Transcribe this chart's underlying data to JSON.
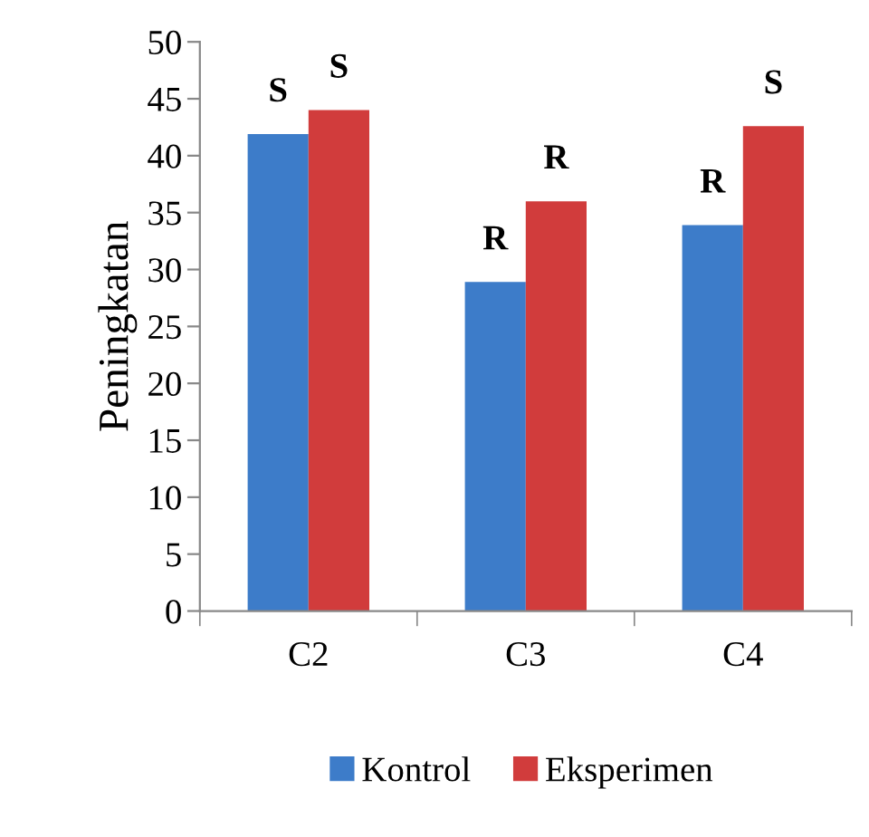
{
  "chart_data": {
    "type": "bar",
    "ylabel": "Peningkatan",
    "categories": [
      "C2",
      "C3",
      "C4"
    ],
    "series": [
      {
        "name": "Kontrol",
        "color": "#3d7cc9",
        "values": [
          41.9,
          28.9,
          33.9
        ],
        "value_labels": [
          "S",
          "R",
          "R"
        ]
      },
      {
        "name": "Eksperimen",
        "color": "#d13c3c",
        "values": [
          44.0,
          36.0,
          42.6
        ],
        "value_labels": [
          "S",
          "R",
          "S"
        ]
      }
    ],
    "ylim": [
      0,
      50
    ],
    "yticks": [
      0,
      5,
      10,
      15,
      20,
      25,
      30,
      35,
      40,
      45,
      50
    ],
    "grid": false,
    "legend": "bottom"
  }
}
